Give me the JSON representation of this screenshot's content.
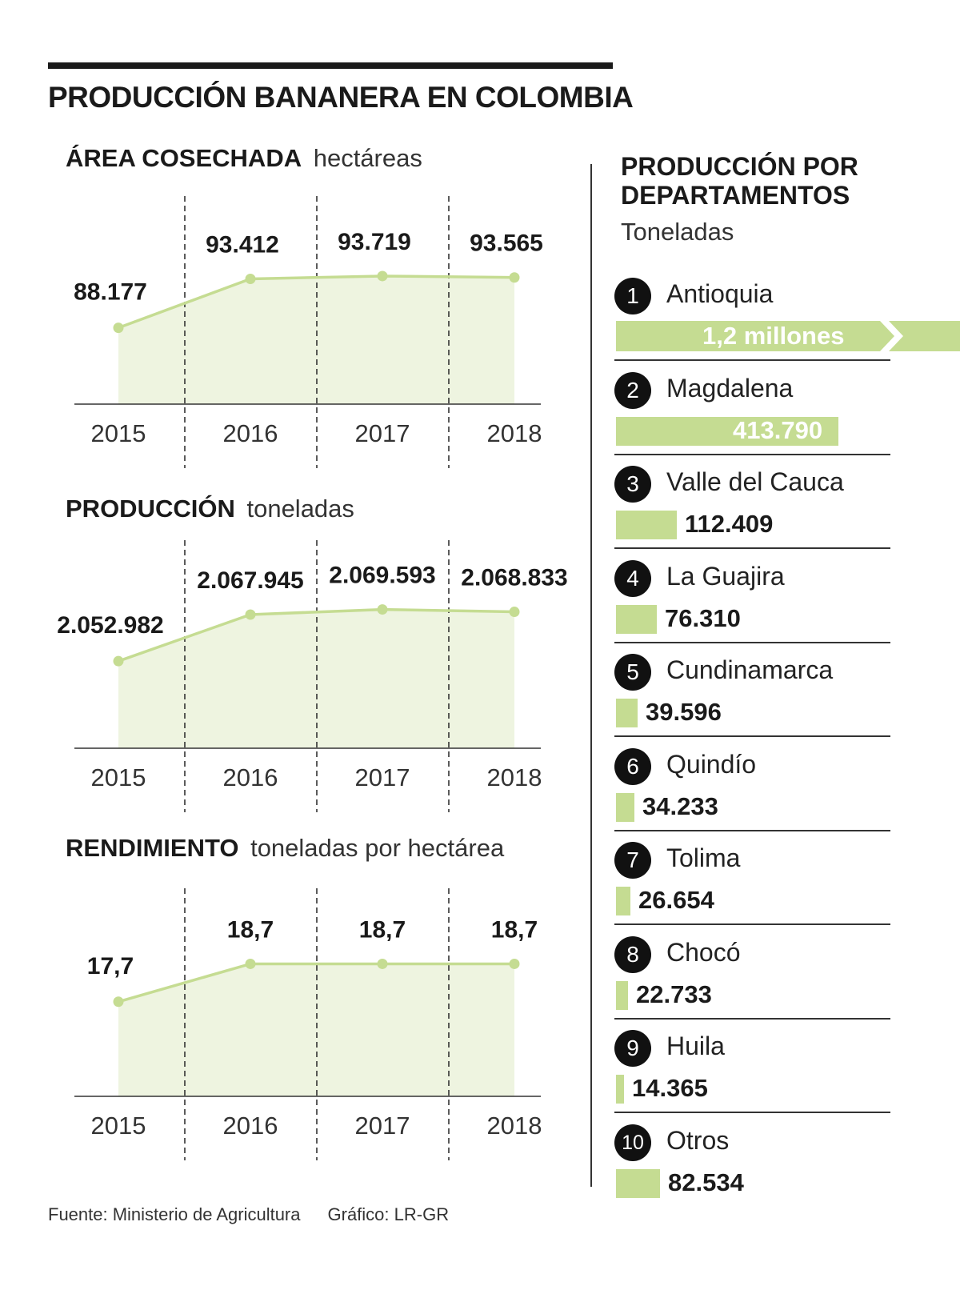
{
  "title": "PRODUCCIÓN BANANERA EN COLOMBIA",
  "colors": {
    "accent": "#c5dc92",
    "fill": "#eef4e0",
    "line": "#c5dc92",
    "text": "#1a1a1a"
  },
  "chart_data": [
    {
      "type": "line",
      "title": "ÁREA COSECHADA",
      "unit": "hectáreas",
      "categories": [
        "2015",
        "2016",
        "2017",
        "2018"
      ],
      "values": [
        88177,
        93412,
        93719,
        93565
      ],
      "labels": [
        "88.177",
        "93.412",
        "93.719",
        "93.565"
      ],
      "ylim": [
        80000,
        95000
      ]
    },
    {
      "type": "line",
      "title": "PRODUCCIÓN",
      "unit": "toneladas",
      "categories": [
        "2015",
        "2016",
        "2017",
        "2018"
      ],
      "values": [
        2052982,
        2067945,
        2069593,
        2068833
      ],
      "labels": [
        "2.052.982",
        "2.067.945",
        "2.069.593",
        "2.068.833"
      ],
      "ylim": [
        2025000,
        2070000
      ]
    },
    {
      "type": "line",
      "title": "RENDIMIENTO",
      "unit": "toneladas por hectárea",
      "categories": [
        "2015",
        "2016",
        "2017",
        "2018"
      ],
      "values": [
        17.7,
        18.7,
        18.7,
        18.7
      ],
      "labels": [
        "17,7",
        "18,7",
        "18,7",
        "18,7"
      ],
      "ylim": [
        15.2,
        18.9
      ]
    },
    {
      "type": "bar",
      "title": "PRODUCCIÓN POR DEPARTAMENTOS",
      "unit": "Toneladas",
      "categories": [
        "Antioquia",
        "Magdalena",
        "Valle del Cauca",
        "La Guajira",
        "Cundinamarca",
        "Quindío",
        "Tolima",
        "Chocó",
        "Huila",
        "Otros"
      ],
      "ranks": [
        "1",
        "2",
        "3",
        "4",
        "5",
        "6",
        "7",
        "8",
        "9",
        "10"
      ],
      "values": [
        1200000,
        413790,
        112409,
        76310,
        39596,
        34233,
        26654,
        22733,
        14365,
        82534
      ],
      "labels": [
        "1,2 millones",
        "413.790",
        "112.409",
        "76.310",
        "39.596",
        "34.233",
        "26.654",
        "22.733",
        "14.365",
        "82.534"
      ],
      "bar_scale_max": 413790
    }
  ],
  "footer": {
    "source": "Fuente: Ministerio de Agricultura",
    "credit": "Gráfico: LR-GR"
  }
}
